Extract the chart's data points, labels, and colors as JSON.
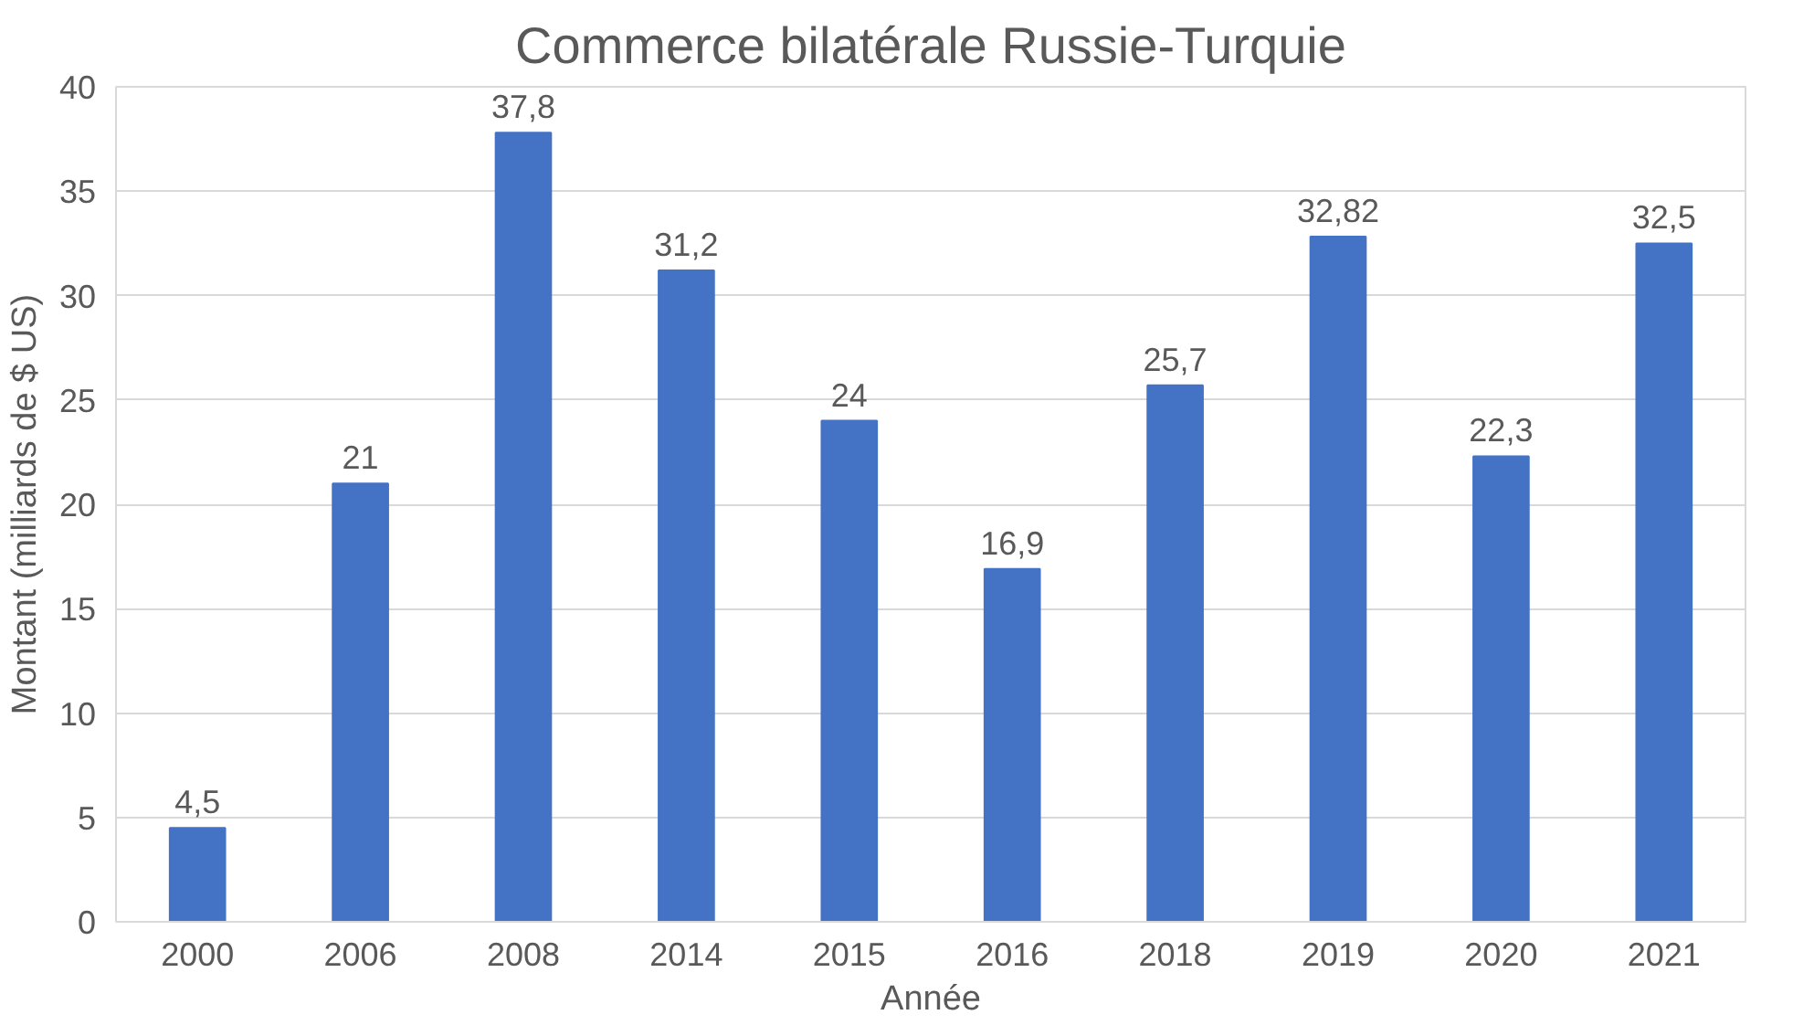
{
  "chart_data": {
    "type": "bar",
    "title": "Commerce bilatérale Russie-Turquie",
    "xlabel": "Année",
    "ylabel": "Montant (milliards de $ US)",
    "categories": [
      "2000",
      "2006",
      "2008",
      "2014",
      "2015",
      "2016",
      "2018",
      "2019",
      "2020",
      "2021"
    ],
    "values": [
      4.5,
      21,
      37.8,
      31.2,
      24,
      16.9,
      25.7,
      32.82,
      22.3,
      32.5
    ],
    "value_labels": [
      "4,5",
      "21",
      "37,8",
      "31,2",
      "24",
      "16,9",
      "25,7",
      "32,82",
      "22,3",
      "32,5"
    ],
    "color": "#4472c4",
    "ylim": [
      0,
      40
    ],
    "yticks": [
      0,
      5,
      10,
      15,
      20,
      25,
      30,
      35,
      40
    ],
    "grid": "y"
  }
}
